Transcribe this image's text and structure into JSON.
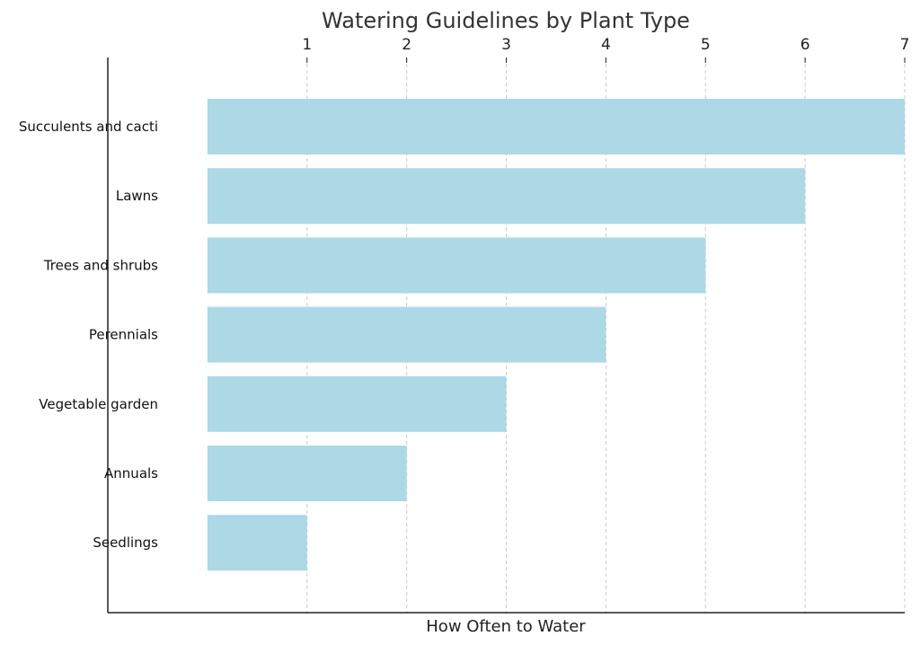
{
  "chart_data": {
    "type": "bar",
    "orientation": "horizontal",
    "title": "Watering Guidelines by Plant Type",
    "xlabel": "How Often to Water",
    "ylabel": "",
    "categories": [
      "Succulents and cacti",
      "Lawns",
      "Trees and shrubs",
      "Perennials",
      "Vegetable garden",
      "Annuals",
      "Seedlings"
    ],
    "values": [
      7,
      6,
      5,
      4,
      3,
      2,
      1
    ],
    "xlim": [
      -1,
      7
    ],
    "xticks": [
      1,
      2,
      3,
      4,
      5,
      6,
      7
    ],
    "xaxis_position": "top",
    "grid": "vertical dashed",
    "bar_color": "#add8e6",
    "legend": "none"
  }
}
